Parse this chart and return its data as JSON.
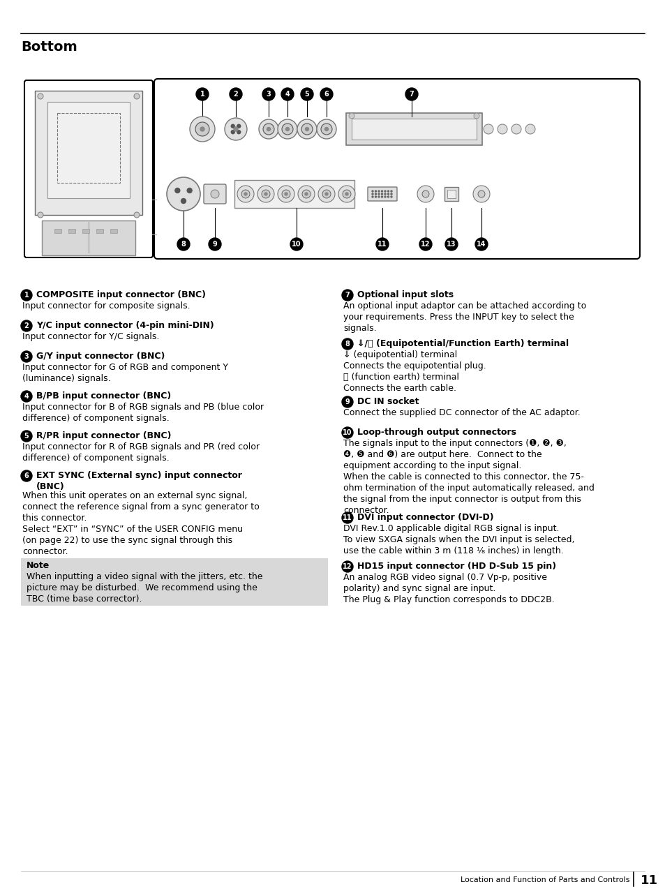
{
  "title": "Bottom",
  "page_num": "11",
  "footer_text": "Location and Function of Parts and Controls",
  "bg_color": "#ffffff",
  "left_col": [
    {
      "num": "1",
      "heading": "COMPOSITE input connector (BNC)",
      "body": "Input connector for composite signals."
    },
    {
      "num": "2",
      "heading": "Y/C input connector (4-pin mini-DIN)",
      "body": "Input connector for Y/C signals."
    },
    {
      "num": "3",
      "heading": "G/Y input connector (BNC)",
      "body": "Input connector for G of RGB and component Y\n(luminance) signals."
    },
    {
      "num": "4",
      "heading": "B/PB input connector (BNC)",
      "body": "Input connector for B of RGB signals and PB (blue color\ndifference) of component signals."
    },
    {
      "num": "5",
      "heading": "R/PR input connector (BNC)",
      "body": "Input connector for R of RGB signals and PR (red color\ndifference) of component signals."
    },
    {
      "num": "6",
      "heading": "EXT SYNC (External sync) input connector\n(BNC)",
      "body": "When this unit operates on an external sync signal,\nconnect the reference signal from a sync generator to\nthis connector.\nSelect “EXT” in “SYNC” of the USER CONFIG menu\n(on page 22) to use the sync signal through this\nconnector."
    }
  ],
  "right_col": [
    {
      "num": "7",
      "heading": "Optional input slots",
      "body": "An optional input adaptor can be attached according to\nyour requirements. Press the INPUT key to select the\nsignals."
    },
    {
      "num": "8",
      "heading": "⇓/⏚ (Equipotential/Function Earth) terminal",
      "body": "⇓ (equipotential) terminal\nConnects the equipotential plug.\n⏚ (function earth) terminal\nConnects the earth cable."
    },
    {
      "num": "9",
      "heading": "DC IN socket",
      "body": "Connect the supplied DC connector of the AC adaptor."
    },
    {
      "num": "10",
      "heading": "Loop-through output connectors",
      "body": "The signals input to the input connectors (❶, ❷, ❸,\n❹, ❺ and ❻) are output here.  Connect to the\nequipment according to the input signal.\nWhen the cable is connected to this connector, the 75-\nohm termination of the input automatically released, and\nthe signal from the input connector is output from this\nconnector."
    },
    {
      "num": "11",
      "heading": "DVI input connector (DVI-D)",
      "body": "DVI Rev.1.0 applicable digital RGB signal is input.\nTo view SXGA signals when the DVI input is selected,\nuse the cable within 3 m (118 ¹⁄₈ inches) in length."
    },
    {
      "num": "12",
      "heading": "HD15 input connector (HD D-Sub 15 pin)",
      "body": "An analog RGB video signal (0.7 Vp-p, positive\npolarity) and sync signal are input.\nThe Plug & Play function corresponds to DDC2B."
    }
  ],
  "note_heading": "Note",
  "note_body": "When inputting a video signal with the jitters, etc. the\npicture may be disturbed.  We recommend using the\nTBC (time base corrector)."
}
